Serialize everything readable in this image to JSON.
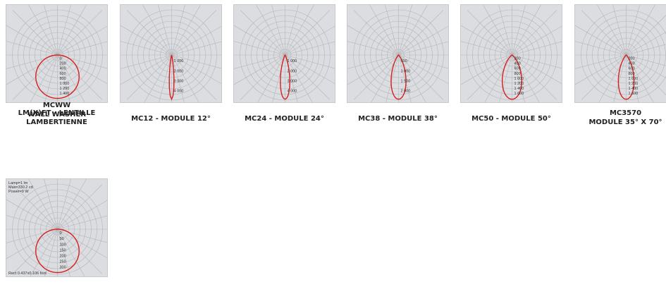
{
  "colors": {
    "panel_bg": "#dcdde0",
    "grid": "#b3b5b9",
    "curve": "#d61f1f",
    "text": "#222222"
  },
  "diagrams": [
    {
      "caption": [
        "LM(X)FT - LENTILLE",
        "LAMBERTIENNE"
      ],
      "scale": [
        "0",
        "200",
        "400",
        "600",
        "800",
        "1 000",
        "1 200",
        "1 400"
      ],
      "beam_deg": 120,
      "lambertian": true
    },
    {
      "caption": [
        "MC12 - MODULE 12°"
      ],
      "scale": [
        "1 000",
        "2 000",
        "3 000",
        "4 000"
      ],
      "beam_deg": 12
    },
    {
      "caption": [
        "MC24 - MODULE 24°"
      ],
      "scale": [
        "1 000",
        "2 000",
        "3 000",
        "4 000"
      ],
      "beam_deg": 24
    },
    {
      "caption": [
        "MC38 - MODULE 38°"
      ],
      "scale": [
        "500",
        "1 000",
        "1 500",
        "2 000"
      ],
      "beam_deg": 38
    },
    {
      "caption": [
        "MC50 - MODULE 50°"
      ],
      "scale": [
        "200",
        "400",
        "600",
        "800",
        "1 000",
        "1 200",
        "1 400",
        "1 600"
      ],
      "beam_deg": 50
    },
    {
      "caption": [
        "MC3570",
        "MODULE 35° X 70°"
      ],
      "scale": [
        "200",
        "400",
        "600",
        "800",
        "1 000",
        "1 200",
        "1 400",
        "1 600"
      ],
      "beam_deg": 40
    },
    {
      "caption": [
        "MCWW",
        "WALL WASHER"
      ],
      "scale": [
        "0",
        "50",
        "100",
        "150",
        "200",
        "250",
        "300"
      ],
      "beam_deg": 70,
      "lambertian": true,
      "info": [
        "Lamp=1 lm",
        "Max=330.2 cd",
        "Power=9 W"
      ],
      "footer": "Rect 0.437x0.106 foot"
    }
  ]
}
